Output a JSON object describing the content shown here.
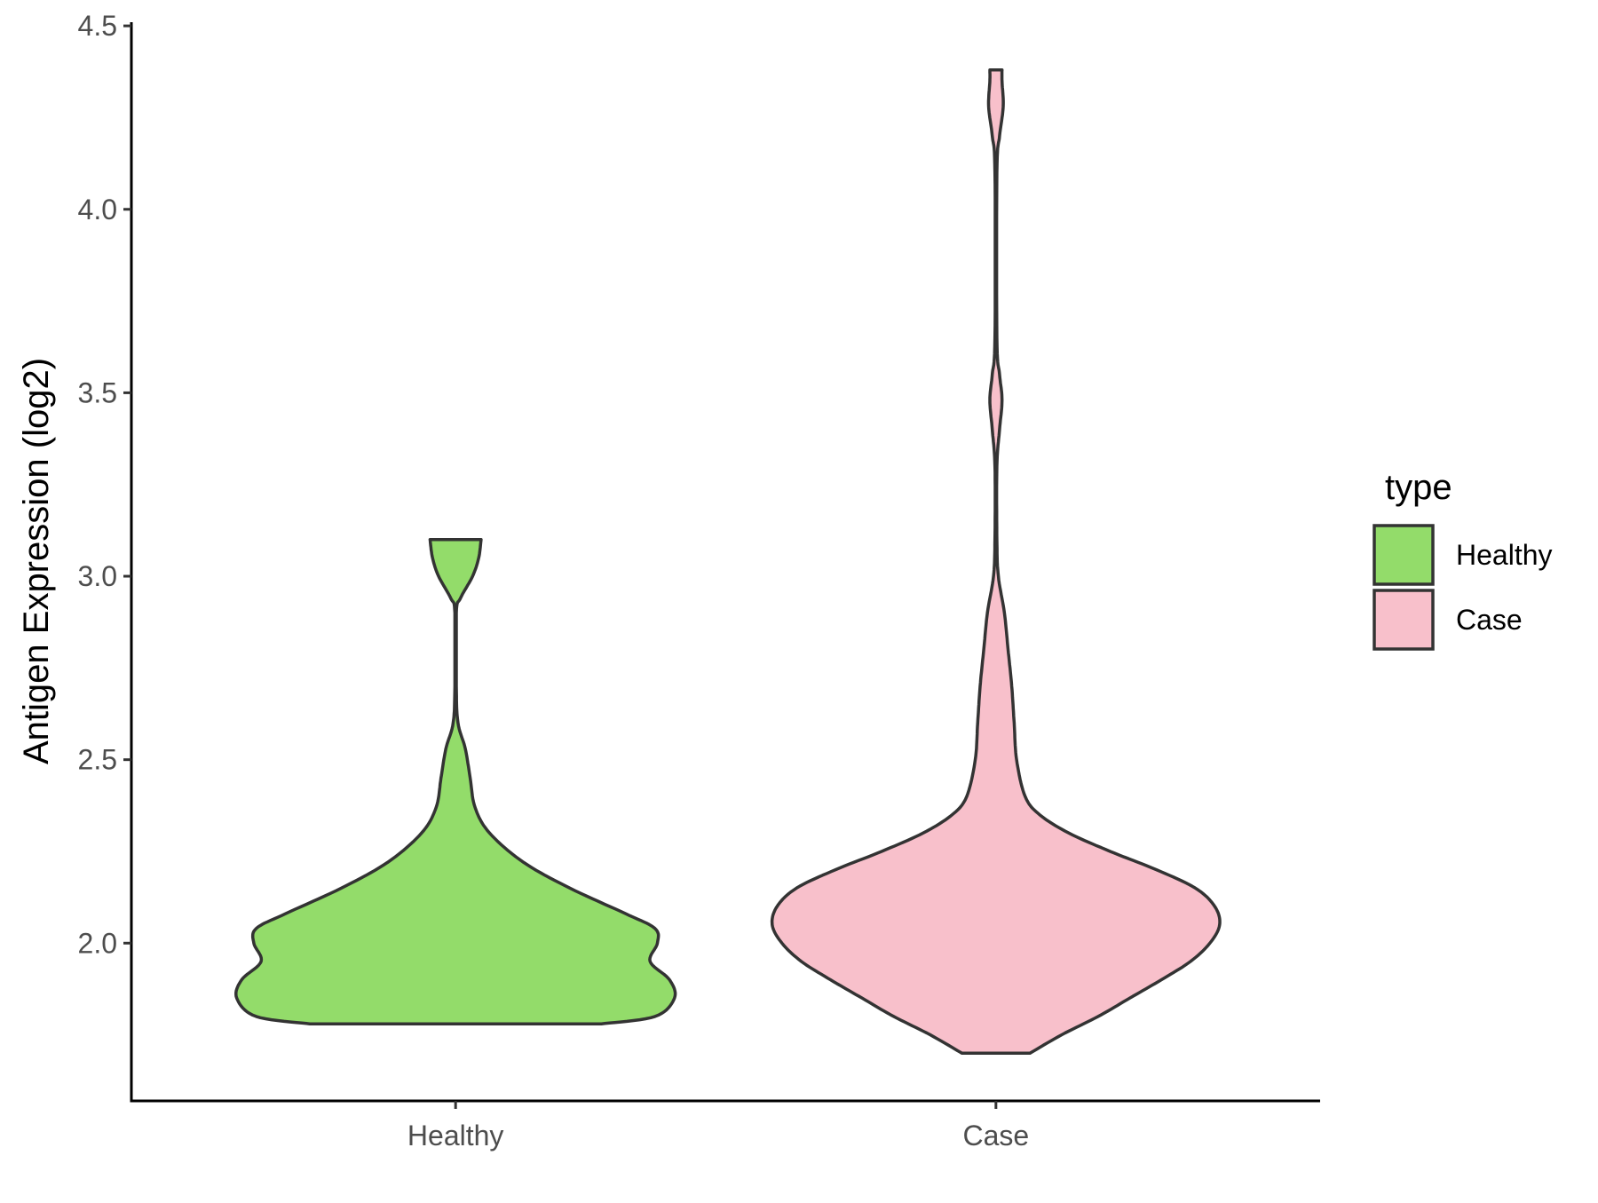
{
  "chart_data": {
    "type": "violin",
    "xlabel": "",
    "ylabel": "Antigen Expression (log2)",
    "categories": [
      "Healthy",
      "Case"
    ],
    "y_ticks": [
      "2.0",
      "2.5",
      "3.0",
      "3.5",
      "4.0",
      "4.5"
    ],
    "ylim": [
      1.57,
      4.51
    ],
    "legend": {
      "title": "type",
      "placement": "right",
      "items": [
        {
          "label": "Healthy",
          "color": "#93dc6a"
        },
        {
          "label": "Case",
          "color": "#f8c0cb"
        }
      ]
    },
    "series": [
      {
        "category": "Healthy",
        "color": "#93dc6a",
        "y_min": 1.78,
        "y_max": 3.1,
        "profile": [
          [
            1.78,
            0.6
          ],
          [
            1.8,
            0.82
          ],
          [
            1.85,
            0.9
          ],
          [
            1.9,
            0.88
          ],
          [
            1.95,
            0.8
          ],
          [
            2.0,
            0.83
          ],
          [
            2.04,
            0.82
          ],
          [
            2.08,
            0.7
          ],
          [
            2.15,
            0.47
          ],
          [
            2.22,
            0.28
          ],
          [
            2.3,
            0.14
          ],
          [
            2.37,
            0.08
          ],
          [
            2.45,
            0.06
          ],
          [
            2.53,
            0.04
          ],
          [
            2.6,
            0.01
          ],
          [
            2.7,
            0.003
          ],
          [
            2.9,
            0.003
          ],
          [
            2.94,
            0.02
          ],
          [
            3.0,
            0.07
          ],
          [
            3.05,
            0.095
          ],
          [
            3.1,
            0.105
          ]
        ]
      },
      {
        "category": "Case",
        "color": "#f8c0cb",
        "y_min": 1.7,
        "y_max": 4.38,
        "profile": [
          [
            1.7,
            0.14
          ],
          [
            1.75,
            0.27
          ],
          [
            1.8,
            0.42
          ],
          [
            1.85,
            0.55
          ],
          [
            1.9,
            0.68
          ],
          [
            1.95,
            0.8
          ],
          [
            2.0,
            0.88
          ],
          [
            2.05,
            0.92
          ],
          [
            2.1,
            0.9
          ],
          [
            2.15,
            0.82
          ],
          [
            2.2,
            0.66
          ],
          [
            2.25,
            0.47
          ],
          [
            2.3,
            0.3
          ],
          [
            2.35,
            0.18
          ],
          [
            2.4,
            0.12
          ],
          [
            2.5,
            0.085
          ],
          [
            2.6,
            0.075
          ],
          [
            2.7,
            0.065
          ],
          [
            2.8,
            0.05
          ],
          [
            2.9,
            0.035
          ],
          [
            3.0,
            0.01
          ],
          [
            3.1,
            0.004
          ],
          [
            3.3,
            0.004
          ],
          [
            3.4,
            0.015
          ],
          [
            3.48,
            0.025
          ],
          [
            3.55,
            0.015
          ],
          [
            3.65,
            0.004
          ],
          [
            4.1,
            0.004
          ],
          [
            4.2,
            0.015
          ],
          [
            4.28,
            0.03
          ],
          [
            4.35,
            0.025
          ],
          [
            4.38,
            0.025
          ]
        ]
      }
    ]
  }
}
